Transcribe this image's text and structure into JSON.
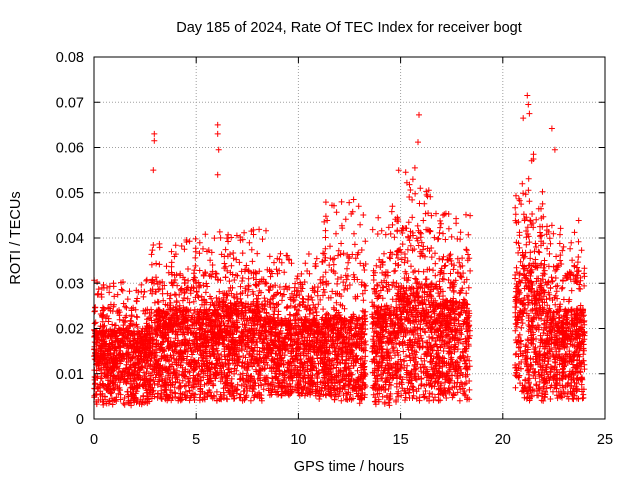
{
  "chart_data": {
    "type": "scatter",
    "title": "Day 185 of 2024, Rate Of TEC Index for receiver bogt",
    "xlabel": "GPS time / hours",
    "ylabel": "ROTI / TECUs",
    "xlim": [
      0,
      25
    ],
    "ylim": [
      0,
      0.08
    ],
    "xticks": [
      "0",
      "5",
      "10",
      "15",
      "20",
      "25"
    ],
    "yticks": [
      "0",
      "0.01",
      "0.02",
      "0.03",
      "0.04",
      "0.05",
      "0.06",
      "0.07",
      "0.08"
    ],
    "grid": true,
    "marker": "plus",
    "color": "#ff0000",
    "data_gap_hours": [
      18.4,
      20.6
    ],
    "highlight_points": [
      {
        "x": 2.95,
        "y": 0.063
      },
      {
        "x": 2.95,
        "y": 0.0615
      },
      {
        "x": 2.9,
        "y": 0.055
      },
      {
        "x": 6.05,
        "y": 0.065
      },
      {
        "x": 6.05,
        "y": 0.063
      },
      {
        "x": 6.1,
        "y": 0.0595
      },
      {
        "x": 6.05,
        "y": 0.054
      },
      {
        "x": 15.9,
        "y": 0.0672
      },
      {
        "x": 15.85,
        "y": 0.0612
      },
      {
        "x": 15.7,
        "y": 0.0555
      },
      {
        "x": 15.6,
        "y": 0.053
      },
      {
        "x": 21.0,
        "y": 0.0665
      },
      {
        "x": 21.2,
        "y": 0.0715
      },
      {
        "x": 21.25,
        "y": 0.0695
      },
      {
        "x": 21.3,
        "y": 0.0675
      },
      {
        "x": 21.5,
        "y": 0.0585
      },
      {
        "x": 22.4,
        "y": 0.0642
      },
      {
        "x": 22.55,
        "y": 0.0595
      },
      {
        "x": 12.7,
        "y": 0.0485
      },
      {
        "x": 12.95,
        "y": 0.047
      },
      {
        "x": 14.6,
        "y": 0.047
      },
      {
        "x": 13.0,
        "y": 0.0035
      },
      {
        "x": 14.45,
        "y": 0.003
      },
      {
        "x": 1.45,
        "y": 0.0035
      }
    ],
    "segments": [
      {
        "x_start": 0.0,
        "x_end": 2.8,
        "y_min": 0.003,
        "y_typ": 0.013,
        "y_max": 0.031
      },
      {
        "x_start": 2.8,
        "x_end": 4.0,
        "y_min": 0.004,
        "y_typ": 0.016,
        "y_max": 0.039
      },
      {
        "x_start": 4.0,
        "x_end": 6.0,
        "y_min": 0.004,
        "y_typ": 0.016,
        "y_max": 0.041
      },
      {
        "x_start": 6.0,
        "x_end": 8.5,
        "y_min": 0.004,
        "y_typ": 0.017,
        "y_max": 0.042
      },
      {
        "x_start": 8.5,
        "x_end": 11.0,
        "y_min": 0.005,
        "y_typ": 0.015,
        "y_max": 0.037
      },
      {
        "x_start": 11.0,
        "x_end": 13.3,
        "y_min": 0.004,
        "y_typ": 0.015,
        "y_max": 0.048
      },
      {
        "x_start": 13.6,
        "x_end": 14.8,
        "y_min": 0.003,
        "y_typ": 0.016,
        "y_max": 0.046
      },
      {
        "x_start": 14.8,
        "x_end": 16.5,
        "y_min": 0.004,
        "y_typ": 0.019,
        "y_max": 0.055
      },
      {
        "x_start": 16.5,
        "x_end": 18.4,
        "y_min": 0.004,
        "y_typ": 0.017,
        "y_max": 0.047
      },
      {
        "x_start": 20.6,
        "x_end": 22.0,
        "y_min": 0.004,
        "y_typ": 0.022,
        "y_max": 0.058
      },
      {
        "x_start": 22.0,
        "x_end": 24.0,
        "y_min": 0.004,
        "y_typ": 0.016,
        "y_max": 0.044
      }
    ]
  }
}
